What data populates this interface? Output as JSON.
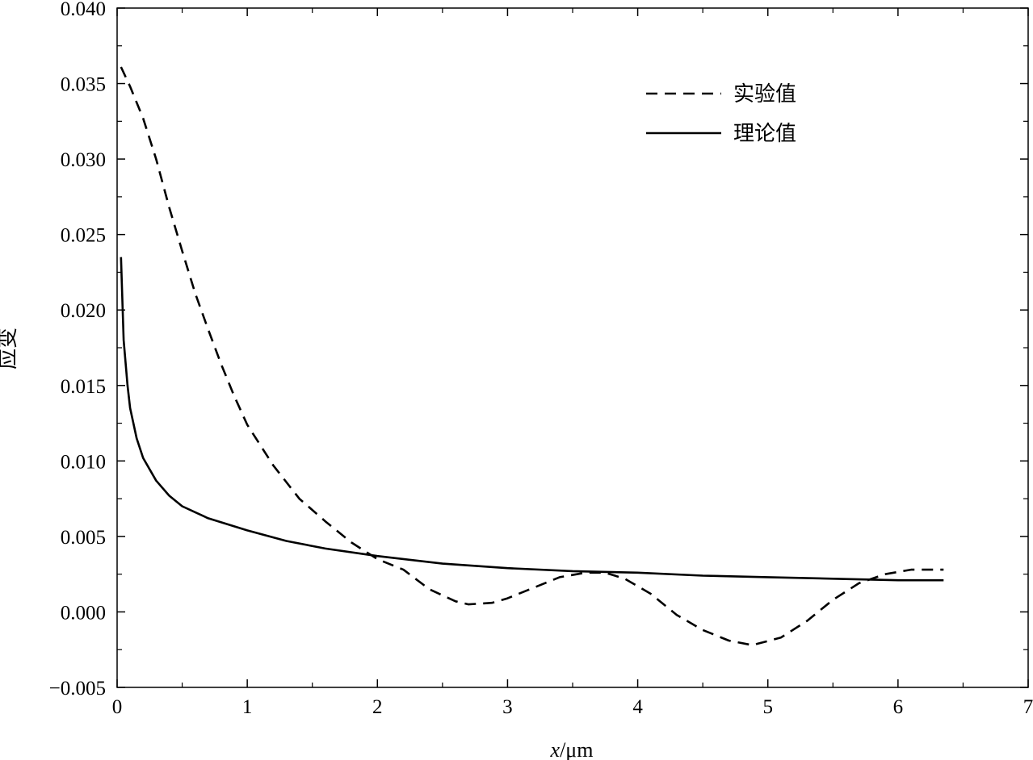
{
  "chart_data": {
    "type": "line",
    "title": "",
    "xlabel": "x/μm",
    "xlabel_var": "x",
    "xlabel_unit": "/μm",
    "ylabel": "应变",
    "xlim": [
      0,
      7
    ],
    "ylim": [
      -0.005,
      0.04
    ],
    "x_ticks": [
      "0",
      "1",
      "2",
      "3",
      "4",
      "5",
      "6",
      "7"
    ],
    "y_ticks": [
      "−0.005",
      "0.000",
      "0.005",
      "0.010",
      "0.015",
      "0.020",
      "0.025",
      "0.030",
      "0.035",
      "0.040"
    ],
    "grid": false,
    "legend_position": "top-right",
    "series": [
      {
        "name": "实验值",
        "style": "dashed",
        "color": "#000000",
        "points": [
          [
            0.03,
            0.0361
          ],
          [
            0.1,
            0.0348
          ],
          [
            0.2,
            0.0327
          ],
          [
            0.3,
            0.03
          ],
          [
            0.4,
            0.0268
          ],
          [
            0.5,
            0.0239
          ],
          [
            0.6,
            0.0211
          ],
          [
            0.7,
            0.0187
          ],
          [
            0.8,
            0.0164
          ],
          [
            0.9,
            0.0143
          ],
          [
            1.0,
            0.0124
          ],
          [
            1.2,
            0.0097
          ],
          [
            1.4,
            0.0075
          ],
          [
            1.6,
            0.006
          ],
          [
            1.8,
            0.0046
          ],
          [
            2.0,
            0.0035
          ],
          [
            2.2,
            0.0028
          ],
          [
            2.4,
            0.0015
          ],
          [
            2.6,
            0.0007
          ],
          [
            2.7,
            0.0005
          ],
          [
            2.88,
            0.0006
          ],
          [
            3.0,
            0.0009
          ],
          [
            3.2,
            0.0016
          ],
          [
            3.4,
            0.0023
          ],
          [
            3.6,
            0.0026
          ],
          [
            3.75,
            0.0026
          ],
          [
            3.9,
            0.0022
          ],
          [
            4.1,
            0.0012
          ],
          [
            4.3,
            -0.0002
          ],
          [
            4.5,
            -0.0012
          ],
          [
            4.7,
            -0.0019
          ],
          [
            4.88,
            -0.0022
          ],
          [
            5.1,
            -0.0017
          ],
          [
            5.3,
            -0.0006
          ],
          [
            5.5,
            0.0008
          ],
          [
            5.7,
            0.0019
          ],
          [
            5.9,
            0.0025
          ],
          [
            6.1,
            0.0028
          ],
          [
            6.25,
            0.0028
          ],
          [
            6.35,
            0.0028
          ]
        ]
      },
      {
        "name": "理论值",
        "style": "solid",
        "color": "#000000",
        "points": [
          [
            0.03,
            0.0235
          ],
          [
            0.05,
            0.018
          ],
          [
            0.08,
            0.015
          ],
          [
            0.1,
            0.0135
          ],
          [
            0.15,
            0.0115
          ],
          [
            0.2,
            0.0102
          ],
          [
            0.3,
            0.0087
          ],
          [
            0.4,
            0.0077
          ],
          [
            0.5,
            0.007
          ],
          [
            0.7,
            0.0062
          ],
          [
            1.0,
            0.0054
          ],
          [
            1.3,
            0.0047
          ],
          [
            1.6,
            0.0042
          ],
          [
            2.0,
            0.0037
          ],
          [
            2.5,
            0.0032
          ],
          [
            3.0,
            0.0029
          ],
          [
            3.5,
            0.0027
          ],
          [
            4.0,
            0.0026
          ],
          [
            4.5,
            0.0024
          ],
          [
            5.0,
            0.0023
          ],
          [
            5.5,
            0.0022
          ],
          [
            6.0,
            0.0021
          ],
          [
            6.35,
            0.0021
          ]
        ]
      }
    ]
  }
}
